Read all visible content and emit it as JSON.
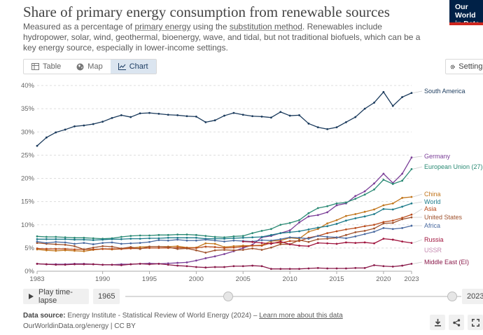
{
  "header": {
    "title": "Share of primary energy consumption from renewable sources",
    "subtitle_parts": {
      "a": "Measured as a percentage of ",
      "b": "primary energy",
      "c": " using the ",
      "d": "substitution method",
      "e": ". Renewables include hydropower, solar, wind, geothermal, bioenergy, wave, and tidal, but not traditional biofuels, which can be a key energy source, especially in lower-income settings."
    },
    "logo_line1": "Our World",
    "logo_line2": "in Data"
  },
  "tabs": [
    {
      "label": "Table",
      "icon": "table-icon"
    },
    {
      "label": "Map",
      "icon": "globe-icon"
    },
    {
      "label": "Chart",
      "icon": "line-chart-icon",
      "active": true
    }
  ],
  "settings_label": "Settings",
  "timeline": {
    "play_label": "Play time-lapse",
    "start_year": "1965",
    "end_year": "2023"
  },
  "footer": {
    "source_prefix": "Data source:",
    "source_text": " Energy Institute - Statistical Review of World Energy (2024) – ",
    "source_link": "Learn more about this data",
    "license": "OurWorldinData.org/energy | CC BY"
  },
  "colors": {
    "south_america": "#1a3a5c",
    "germany": "#7b3f98",
    "eu": "#2a8a74",
    "china": "#c2761d",
    "world": "#1d7b8a",
    "asia": "#b94a1a",
    "us": "#a0522d",
    "africa": "#4a6aa0",
    "russia": "#a0153e",
    "ussr": "#c58ab0",
    "middle_east": "#8a1a4a"
  },
  "chart_data": {
    "type": "line",
    "title": "Share of primary energy consumption from renewable sources",
    "ylabel": "",
    "xlabel": "",
    "y_unit": "%",
    "ylim": [
      0,
      40
    ],
    "xlim": [
      1983,
      2023
    ],
    "y_ticks": [
      "0%",
      "5%",
      "10%",
      "15%",
      "20%",
      "25%",
      "30%",
      "35%",
      "40%"
    ],
    "x_ticks": [
      "1983",
      "1990",
      "1995",
      "2000",
      "2005",
      "2010",
      "2015",
      "2020",
      "2023"
    ],
    "x_tick_values": [
      1983,
      1990,
      1995,
      2000,
      2005,
      2010,
      2015,
      2020,
      2023
    ],
    "x": [
      1983,
      1984,
      1985,
      1986,
      1987,
      1988,
      1989,
      1990,
      1991,
      1992,
      1993,
      1994,
      1995,
      1996,
      1997,
      1998,
      1999,
      2000,
      2001,
      2002,
      2003,
      2004,
      2005,
      2006,
      2007,
      2008,
      2009,
      2010,
      2011,
      2012,
      2013,
      2014,
      2015,
      2016,
      2017,
      2018,
      2019,
      2020,
      2021,
      2022,
      2023
    ],
    "series": [
      {
        "name": "South America",
        "label": "South America",
        "color": "#1a3a5c",
        "values": [
          27.0,
          28.8,
          29.9,
          30.5,
          31.2,
          31.4,
          31.7,
          32.2,
          33.0,
          33.6,
          33.2,
          34.0,
          34.1,
          33.9,
          33.7,
          33.6,
          33.4,
          33.3,
          32.1,
          32.5,
          33.5,
          34.1,
          33.7,
          33.4,
          33.3,
          33.1,
          34.3,
          33.5,
          33.6,
          31.8,
          31.0,
          30.6,
          31.0,
          32.1,
          33.2,
          35.0,
          36.3,
          38.6,
          35.6,
          37.5,
          38.4
        ]
      },
      {
        "name": "Germany",
        "label": "Germany",
        "color": "#7b3f98",
        "values": [
          1.6,
          1.5,
          1.5,
          1.5,
          1.6,
          1.6,
          1.5,
          1.4,
          1.4,
          1.5,
          1.5,
          1.6,
          1.7,
          1.6,
          1.7,
          1.8,
          1.9,
          2.3,
          2.8,
          3.2,
          3.7,
          4.3,
          5.0,
          5.7,
          7.3,
          7.6,
          8.2,
          8.8,
          10.5,
          11.8,
          12.1,
          12.7,
          14.2,
          14.6,
          16.2,
          17.2,
          18.9,
          21.0,
          19.0,
          21.0,
          24.5
        ]
      },
      {
        "name": "European Union (27)",
        "label": "European Union (27)",
        "color": "#2a8a74",
        "values": [
          7.5,
          7.4,
          7.4,
          7.3,
          7.2,
          7.2,
          7.1,
          7.0,
          7.1,
          7.4,
          7.6,
          7.7,
          7.7,
          7.8,
          7.8,
          7.9,
          7.9,
          7.8,
          7.6,
          7.4,
          7.3,
          7.5,
          7.6,
          8.2,
          8.7,
          9.1,
          10.0,
          10.4,
          11.0,
          12.5,
          13.6,
          14.0,
          14.6,
          14.8,
          15.6,
          16.5,
          17.6,
          19.7,
          18.8,
          19.5,
          22.0
        ]
      },
      {
        "name": "China",
        "label": "China",
        "color": "#c2761d",
        "values": [
          4.7,
          4.5,
          4.4,
          4.5,
          4.4,
          4.3,
          4.6,
          4.8,
          4.7,
          4.8,
          5.0,
          5.2,
          5.3,
          5.3,
          5.3,
          5.4,
          5.1,
          5.1,
          6.0,
          5.9,
          5.2,
          5.4,
          5.5,
          5.5,
          5.6,
          6.5,
          6.6,
          7.2,
          7.0,
          8.5,
          9.1,
          10.3,
          11.0,
          11.9,
          12.3,
          12.8,
          13.3,
          14.2,
          14.6,
          15.8,
          16.0
        ]
      },
      {
        "name": "World",
        "label": "World",
        "color": "#1d7b8a",
        "values": [
          6.9,
          6.9,
          6.9,
          6.9,
          6.8,
          6.8,
          6.7,
          6.8,
          6.9,
          6.9,
          7.0,
          7.0,
          7.1,
          7.1,
          7.2,
          7.2,
          7.2,
          7.2,
          7.0,
          7.0,
          7.0,
          7.1,
          7.2,
          7.3,
          7.4,
          7.8,
          8.2,
          8.4,
          8.6,
          9.0,
          9.4,
          9.7,
          10.2,
          10.9,
          11.4,
          11.8,
          12.3,
          13.4,
          13.3,
          13.9,
          14.6
        ]
      },
      {
        "name": "Asia",
        "label": "Asia",
        "color": "#b94a1a",
        "values": [
          4.9,
          4.8,
          4.8,
          4.8,
          4.7,
          4.7,
          4.7,
          4.8,
          4.8,
          4.8,
          4.9,
          4.9,
          5.0,
          5.0,
          5.0,
          5.1,
          5.0,
          5.0,
          5.3,
          5.2,
          5.0,
          5.1,
          5.3,
          5.5,
          5.5,
          6.1,
          6.1,
          6.5,
          6.5,
          7.2,
          7.6,
          8.2,
          8.6,
          9.0,
          9.3,
          9.7,
          10.0,
          10.6,
          10.9,
          11.5,
          12.2
        ]
      },
      {
        "name": "United States",
        "label": "United States",
        "color": "#a0522d",
        "values": [
          6.1,
          5.9,
          5.8,
          5.7,
          5.4,
          4.7,
          5.1,
          5.4,
          5.3,
          4.9,
          5.2,
          4.8,
          5.3,
          5.3,
          5.2,
          4.8,
          4.9,
          4.5,
          4.0,
          4.5,
          4.6,
          4.5,
          4.6,
          4.9,
          4.6,
          5.1,
          5.8,
          5.8,
          6.7,
          6.3,
          6.9,
          7.0,
          7.2,
          7.8,
          8.4,
          8.7,
          9.2,
          10.3,
          10.4,
          11.2,
          11.6
        ]
      },
      {
        "name": "Africa",
        "label": "Africa",
        "color": "#4a6aa0",
        "values": [
          6.4,
          6.1,
          6.3,
          6.2,
          5.9,
          6.1,
          5.8,
          6.1,
          6.2,
          5.9,
          6.0,
          6.1,
          6.3,
          6.7,
          6.6,
          6.8,
          6.6,
          6.6,
          6.8,
          6.6,
          6.4,
          6.6,
          6.5,
          6.4,
          6.7,
          6.6,
          6.9,
          7.3,
          7.2,
          7.0,
          7.6,
          7.4,
          7.3,
          7.1,
          7.5,
          8.0,
          8.5,
          9.3,
          9.1,
          9.3,
          9.8
        ]
      },
      {
        "name": "Russia",
        "label": "Russia",
        "color": "#a0153e",
        "values": [
          null,
          null,
          null,
          null,
          null,
          null,
          null,
          null,
          null,
          null,
          null,
          null,
          null,
          null,
          null,
          null,
          null,
          null,
          null,
          null,
          null,
          null,
          6.4,
          6.3,
          6.1,
          5.9,
          6.4,
          5.8,
          5.5,
          5.4,
          6.1,
          6.0,
          5.9,
          6.2,
          6.1,
          6.2,
          6.0,
          7.0,
          6.8,
          6.4,
          6.1
        ]
      },
      {
        "name": "USSR",
        "label": "USSR",
        "color": "#c58ab0",
        "values": [
          null,
          null,
          null,
          null,
          null,
          null,
          null,
          null,
          null,
          null,
          null,
          null,
          null,
          null,
          null,
          null,
          null,
          null,
          null,
          null,
          null,
          null,
          null,
          null,
          null,
          null,
          null,
          null,
          null,
          null,
          null,
          null,
          null,
          null,
          null,
          null,
          null,
          null,
          null,
          null,
          null
        ]
      },
      {
        "name": "Middle East (EI)",
        "label": "Middle East (EI)",
        "color": "#8a1a4a",
        "values": [
          1.6,
          1.5,
          1.4,
          1.4,
          1.5,
          1.5,
          1.5,
          1.4,
          1.4,
          1.3,
          1.5,
          1.6,
          1.5,
          1.6,
          1.4,
          1.2,
          1.1,
          0.9,
          0.8,
          0.9,
          0.9,
          1.1,
          1.1,
          1.2,
          1.1,
          0.5,
          0.5,
          0.5,
          0.5,
          0.6,
          0.7,
          0.6,
          0.6,
          0.6,
          0.7,
          0.7,
          1.3,
          1.1,
          1.0,
          1.2,
          1.6
        ]
      }
    ]
  }
}
